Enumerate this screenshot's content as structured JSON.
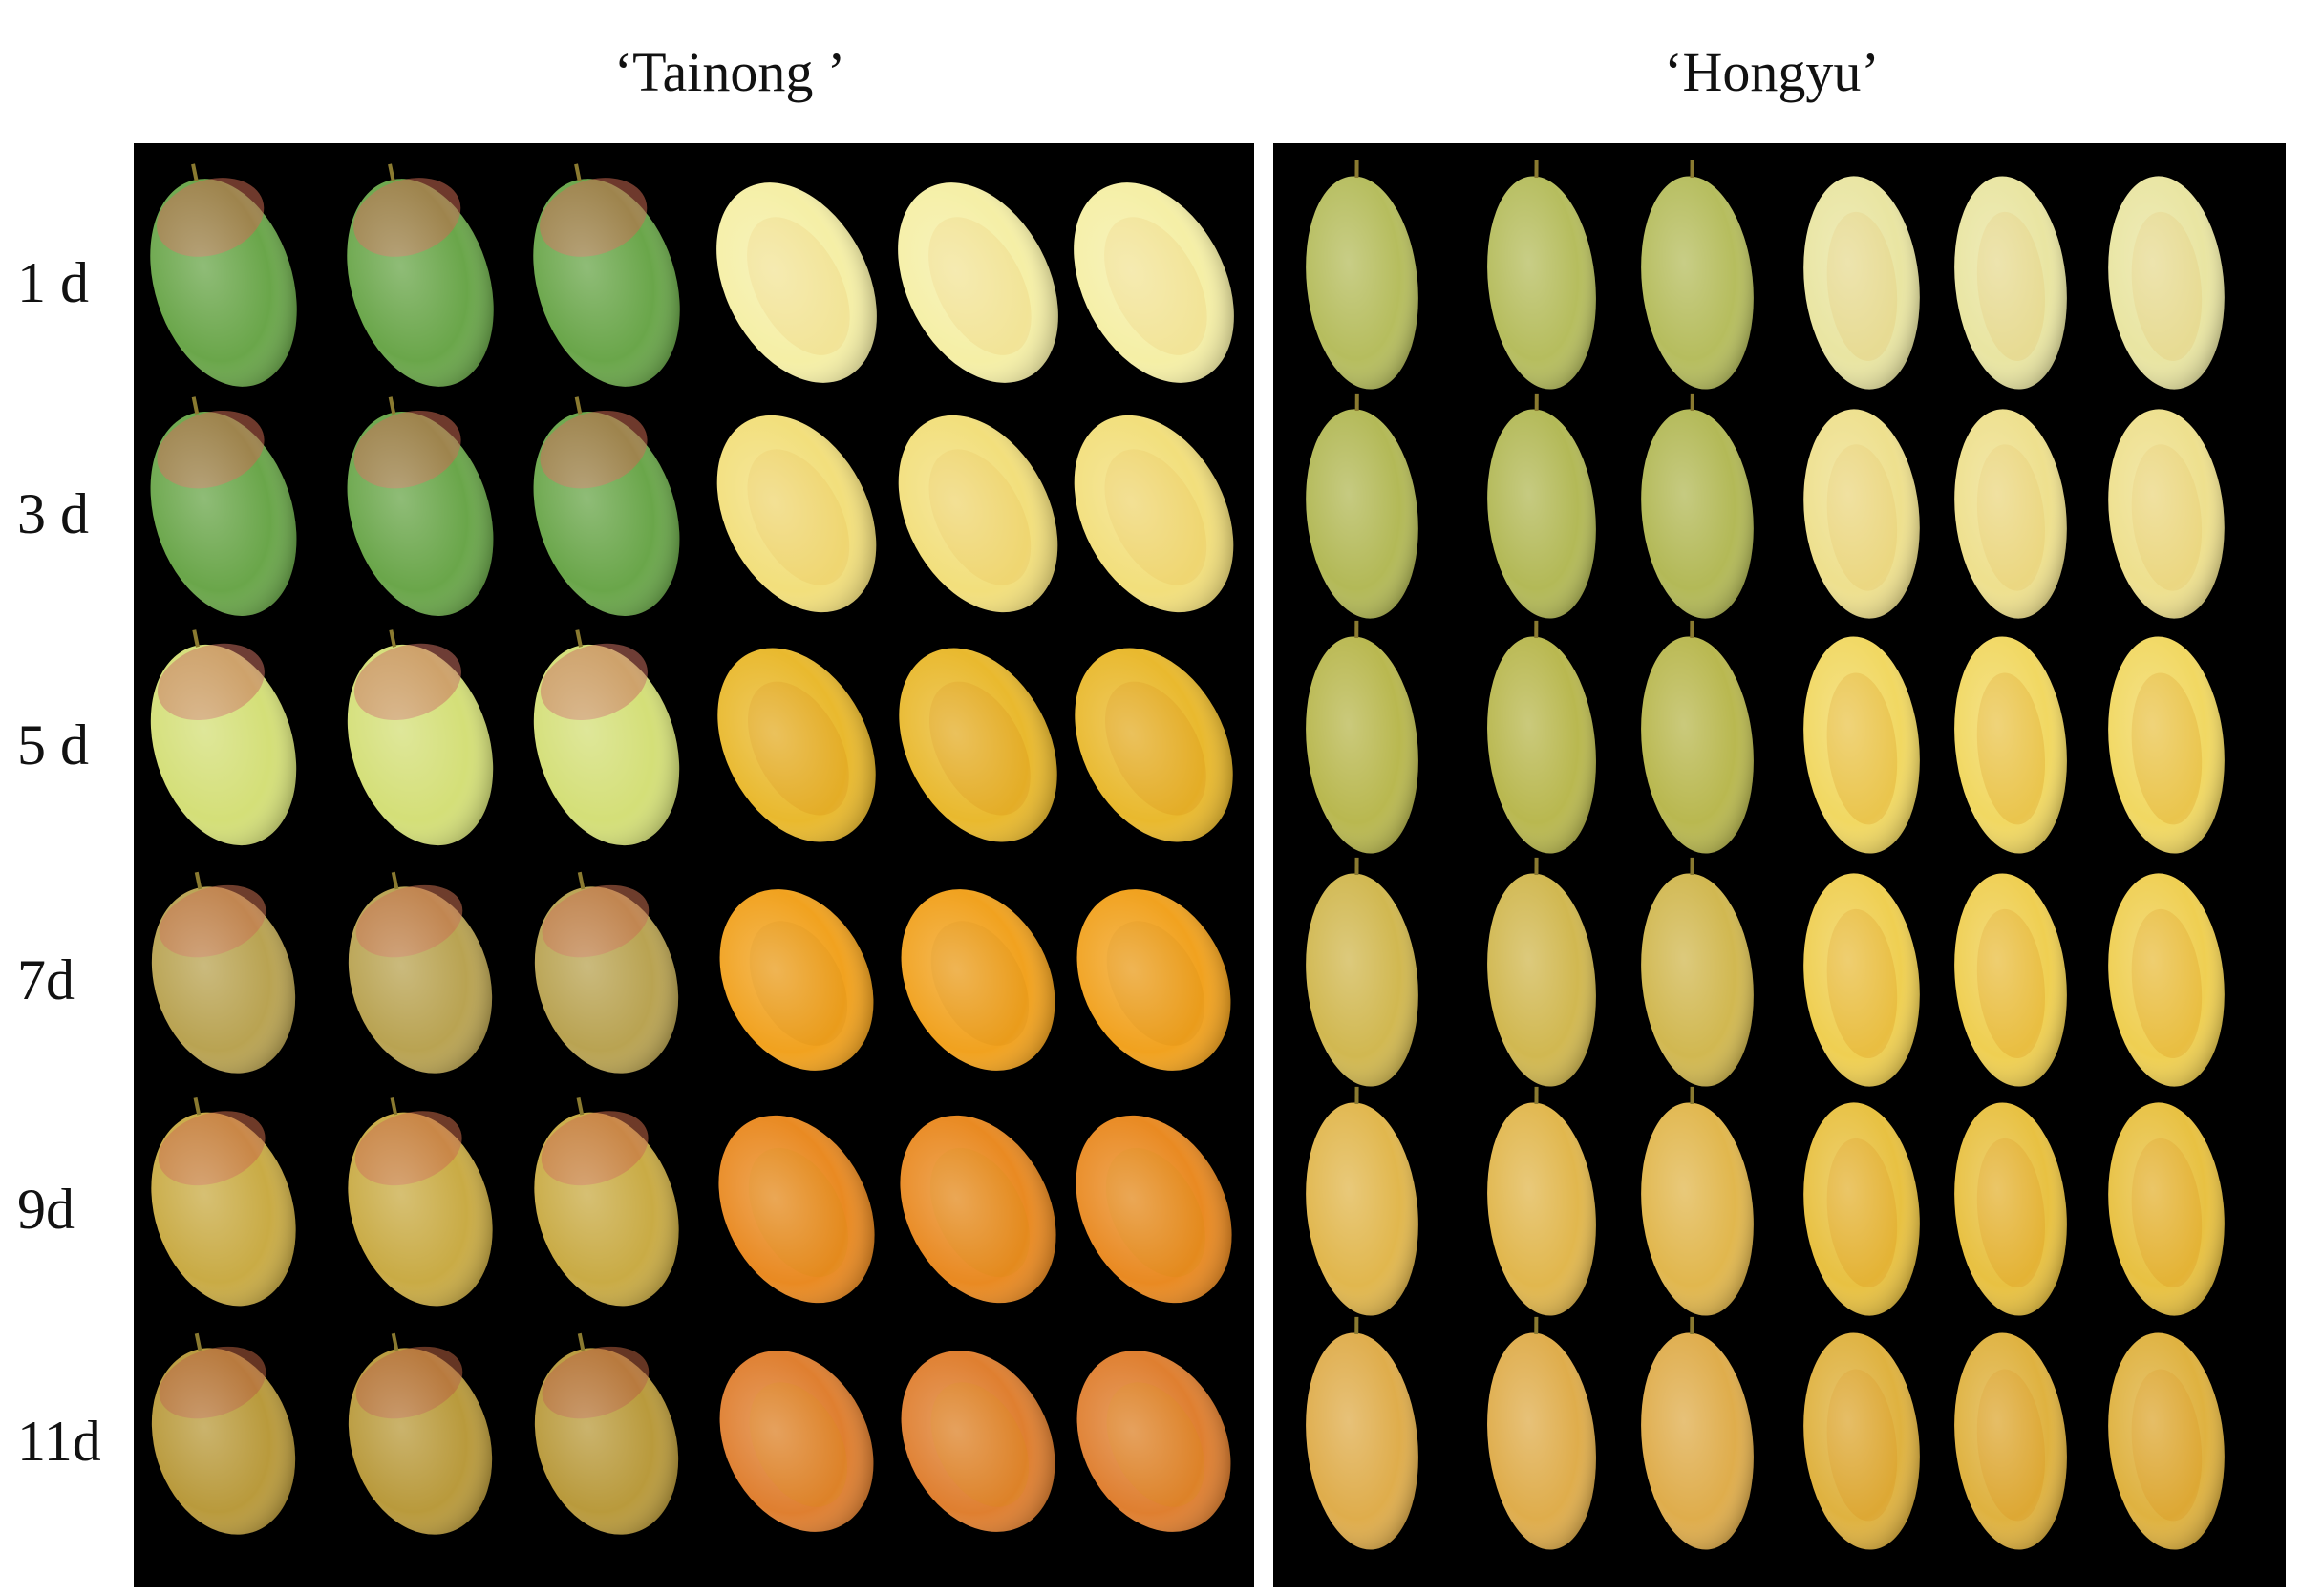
{
  "panels": [
    {
      "title": "‘Tainong ’"
    },
    {
      "title": "‘Hongyu’"
    }
  ],
  "rows": [
    {
      "label": "1 d"
    },
    {
      "label": "3 d"
    },
    {
      "label": "5 d"
    },
    {
      "label": "7d"
    },
    {
      "label": "9d"
    },
    {
      "label": "11d"
    }
  ]
}
